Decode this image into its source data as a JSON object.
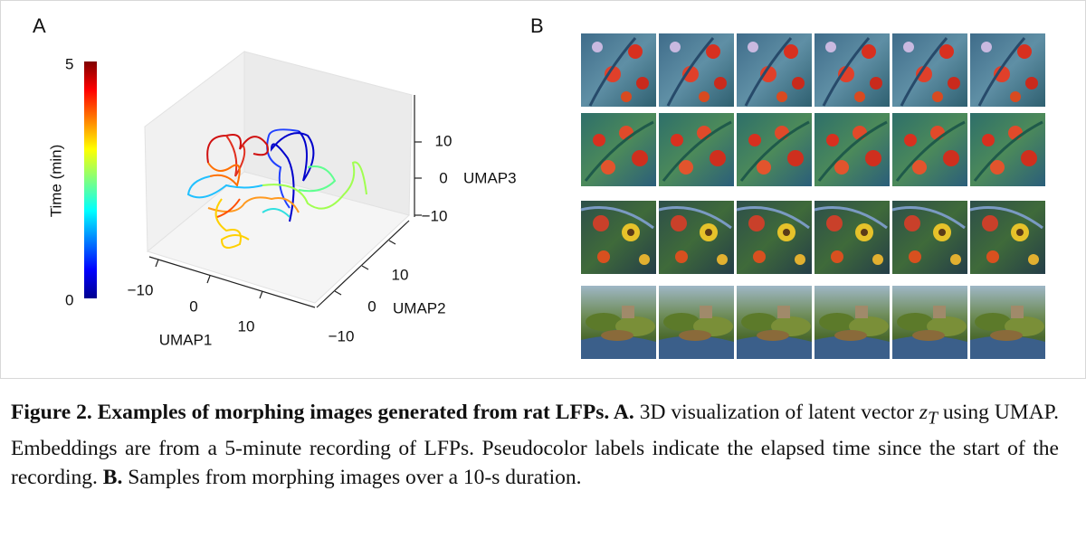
{
  "panel_a": {
    "letter": "A",
    "colorbar": {
      "label": "Time (min)",
      "top_label": "5",
      "bottom_label": "0"
    },
    "umap1": {
      "label": "UMAP1",
      "ticks": [
        "−10",
        "0",
        "10"
      ]
    },
    "umap2": {
      "label": "UMAP2",
      "ticks": [
        "10",
        "0",
        "−10"
      ]
    },
    "umap3": {
      "label": "UMAP3",
      "ticks": [
        "10",
        "0",
        "−10"
      ]
    }
  },
  "panel_b": {
    "letter": "B"
  },
  "caption": {
    "lead": "Figure 2. Examples of morphing images generated from rat LFPs. A.",
    "text_1": " 3D visualization of latent vector ",
    "var": "z",
    "sub": "T",
    "text_2": " using UMAP. Embeddings are from a 5-minute recording of LFPs. Pseudocolor labels indicate the elapsed time since the start of the recording. ",
    "lead_b": "B.",
    "text_3": " Samples from morphing images over a 10-s duration."
  }
}
